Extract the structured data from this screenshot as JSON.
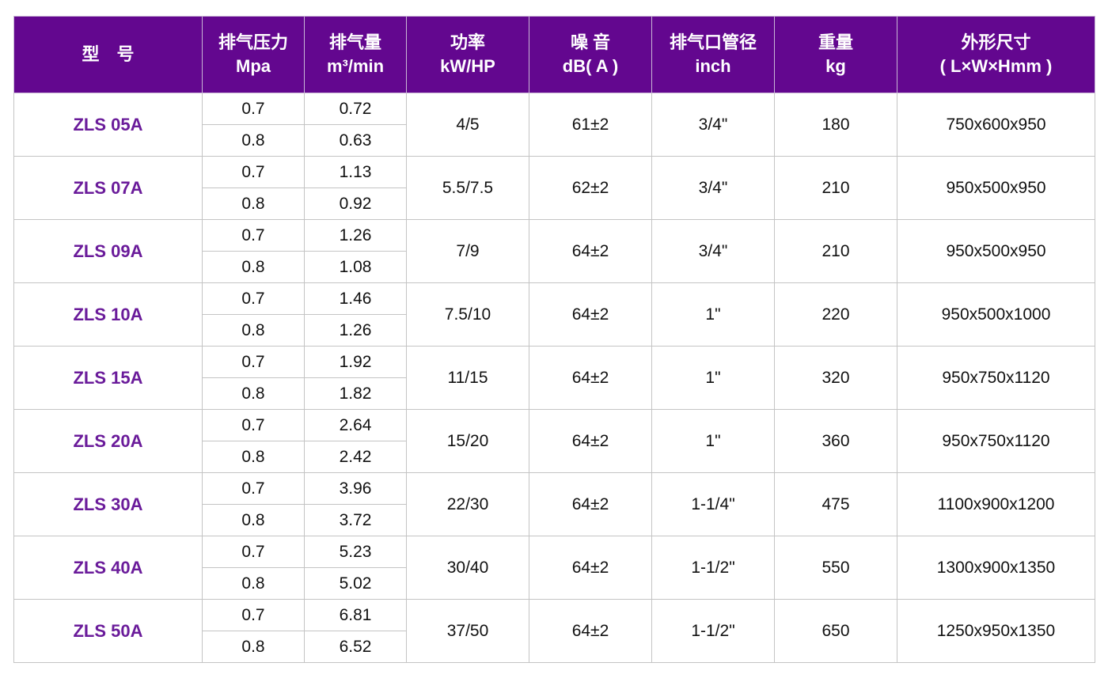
{
  "header": [
    [
      "型　号"
    ],
    [
      "排气压力",
      "Mpa"
    ],
    [
      "排气量",
      "m³/min"
    ],
    [
      "功率",
      "kW/HP"
    ],
    [
      "噪 音",
      "dB( A )"
    ],
    [
      "排气口管径",
      "inch"
    ],
    [
      "重量",
      "kg"
    ],
    [
      "外形尺寸",
      "( L×W×Hmm )"
    ]
  ],
  "rows": [
    {
      "model": "ZLS 05A",
      "pressure": [
        "0.7",
        "0.8"
      ],
      "flow": [
        "0.72",
        "0.63"
      ],
      "power": "4/5",
      "noise": "61±2",
      "outlet": "3/4\"",
      "weight": "180",
      "dims": "750x600x950"
    },
    {
      "model": "ZLS 07A",
      "pressure": [
        "0.7",
        "0.8"
      ],
      "flow": [
        "1.13",
        "0.92"
      ],
      "power": "5.5/7.5",
      "noise": "62±2",
      "outlet": "3/4\"",
      "weight": "210",
      "dims": "950x500x950"
    },
    {
      "model": "ZLS 09A",
      "pressure": [
        "0.7",
        "0.8"
      ],
      "flow": [
        "1.26",
        "1.08"
      ],
      "power": "7/9",
      "noise": "64±2",
      "outlet": "3/4\"",
      "weight": "210",
      "dims": "950x500x950"
    },
    {
      "model": "ZLS 10A",
      "pressure": [
        "0.7",
        "0.8"
      ],
      "flow": [
        "1.46",
        "1.26"
      ],
      "power": "7.5/10",
      "noise": "64±2",
      "outlet": "1\"",
      "weight": "220",
      "dims": "950x500x1000"
    },
    {
      "model": "ZLS 15A",
      "pressure": [
        "0.7",
        "0.8"
      ],
      "flow": [
        "1.92",
        "1.82"
      ],
      "power": "11/15",
      "noise": "64±2",
      "outlet": "1\"",
      "weight": "320",
      "dims": "950x750x1120"
    },
    {
      "model": "ZLS 20A",
      "pressure": [
        "0.7",
        "0.8"
      ],
      "flow": [
        "2.64",
        "2.42"
      ],
      "power": "15/20",
      "noise": "64±2",
      "outlet": "1\"",
      "weight": "360",
      "dims": "950x750x1120"
    },
    {
      "model": "ZLS 30A",
      "pressure": [
        "0.7",
        "0.8"
      ],
      "flow": [
        "3.96",
        "3.72"
      ],
      "power": "22/30",
      "noise": "64±2",
      "outlet": "1-1/4\"",
      "weight": "475",
      "dims": "1100x900x1200"
    },
    {
      "model": "ZLS 40A",
      "pressure": [
        "0.7",
        "0.8"
      ],
      "flow": [
        "5.23",
        "5.02"
      ],
      "power": "30/40",
      "noise": "64±2",
      "outlet": "1-1/2\"",
      "weight": "550",
      "dims": "1300x900x1350"
    },
    {
      "model": "ZLS 50A",
      "pressure": [
        "0.7",
        "0.8"
      ],
      "flow": [
        "6.81",
        "6.52"
      ],
      "power": "37/50",
      "noise": "64±2",
      "outlet": "1-1/2\"",
      "weight": "650",
      "dims": "1250x950x1350"
    }
  ],
  "colors": {
    "header_bg": "#63078f",
    "model_text": "#6a1b9a"
  }
}
